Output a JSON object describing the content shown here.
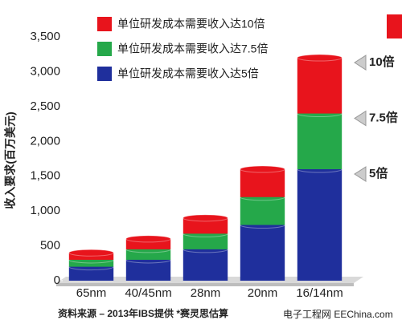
{
  "chart_data": {
    "type": "stacked-bar",
    "y_label": "收入要求(百万美元)",
    "categories": [
      "65nm",
      "40/45nm",
      "28nm",
      "20nm",
      "16/14nm"
    ],
    "series": [
      {
        "name": "单位研发成本需要收入达5倍",
        "color": "#1f2f9c",
        "values": [
          200,
          300,
          450,
          800,
          1600
        ]
      },
      {
        "name": "单位研发成本需要收入达7.5倍",
        "color": "#25a84a",
        "values": [
          100,
          150,
          225,
          400,
          800
        ]
      },
      {
        "name": "单位研发成本需要收入达10倍",
        "color": "#e8141c",
        "values": [
          100,
          150,
          225,
          400,
          800
        ]
      }
    ],
    "ylim": [
      0,
      3500
    ],
    "yticks": [
      0,
      500,
      {
        "value": 1000,
        "label": "1,000"
      },
      {
        "value": 1500,
        "label": "1,500"
      },
      {
        "value": 2000,
        "label": "2,000"
      },
      {
        "value": 2500,
        "label": "2,500"
      },
      {
        "value": 3000,
        "label": "3,000"
      },
      {
        "value": 3500,
        "label": "3,500"
      }
    ],
    "annotations": [
      "10倍",
      "7.5倍",
      "5倍"
    ],
    "source": "资料来源 – 2013年IBS提供   *赛灵思估算",
    "watermark": "电子工程网 EEChina.com"
  }
}
